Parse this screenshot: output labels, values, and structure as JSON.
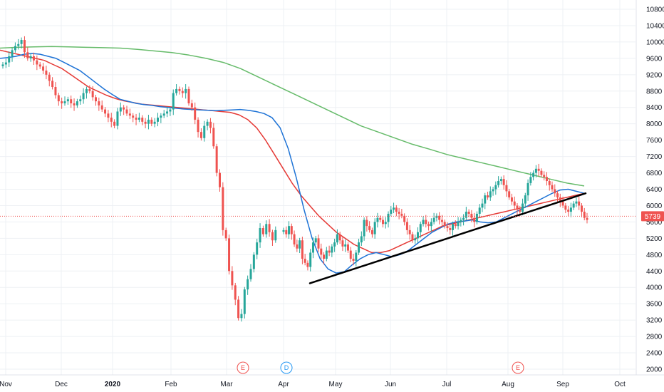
{
  "chart_data": {
    "type": "candlestick",
    "y_axis": {
      "ylim": [
        1900,
        11000
      ],
      "ticks": [
        2000,
        2400,
        2800,
        3200,
        3600,
        4000,
        4400,
        4800,
        5200,
        5600,
        6000,
        6400,
        6800,
        7200,
        7600,
        8000,
        8400,
        8800,
        9200,
        9600,
        10000,
        10400,
        10800
      ],
      "position": "right"
    },
    "x_axis": {
      "ticks": [
        "Nov",
        "Dec",
        "2020",
        "Feb",
        "Mar",
        "Apr",
        "May",
        "Jun",
        "Jul",
        "Aug",
        "Sep",
        "Oct"
      ],
      "range": [
        "Nov",
        "mid-Oct"
      ]
    },
    "last_price": {
      "value": "5739",
      "color": "#ef5350"
    },
    "colors": {
      "up": "#26a69a",
      "down": "#ef5350",
      "ma_fast": "#1e73d6",
      "ma_mid": "#e53935",
      "ma_slow": "#66bb6a",
      "trendline": "#000000"
    },
    "grid": true,
    "candles": {
      "x_start": 0,
      "x_end": 88,
      "closes": [
        9450,
        9500,
        9650,
        9800,
        9900,
        9950,
        10050,
        9750,
        9600,
        9650,
        9550,
        9450,
        9400,
        9300,
        9200,
        9050,
        8900,
        8700,
        8550,
        8500,
        8550,
        8600,
        8500,
        8450,
        8550,
        8600,
        8750,
        8850,
        8800,
        8650,
        8550,
        8450,
        8350,
        8250,
        8150,
        8050,
        7950,
        8300,
        8400,
        8350,
        8250,
        8200,
        8150,
        8100,
        8150,
        8050,
        8000,
        8100,
        8000,
        8050,
        8150,
        8200,
        8250,
        8300,
        8350,
        8750,
        8850,
        8800,
        8750,
        8850,
        8500,
        8400,
        8100,
        7800,
        7650,
        7950,
        8050,
        7900,
        7450,
        6800,
        6450,
        5400,
        5200,
        4400,
        4050,
        3700,
        3250,
        3350,
        3950,
        4200,
        4450,
        4800,
        5100,
        5450,
        5300,
        5550,
        5350,
        5150,
        5400
      ]
    },
    "extra_candles": [
      {
        "x": 47,
        "closes": [
          5400,
          5300,
          5500,
          5300,
          5050,
          4950,
          5150,
          4700,
          4600,
          4500,
          4850,
          5100,
          5200,
          4950,
          4800,
          4700,
          4900,
          4850,
          5000,
          5100,
          5300,
          5150,
          5000,
          5050,
          4900,
          4700,
          4650,
          4850,
          5100,
          5250,
          5650,
          5500,
          5400,
          5300,
          5600,
          5700,
          5650,
          5550,
          5600,
          5800,
          5900,
          5950,
          5850,
          5800,
          5750,
          5600,
          5400,
          5300,
          5150,
          5200,
          5350,
          5550,
          5650,
          5550,
          5500,
          5600,
          5700,
          5750,
          5650,
          5600,
          5500,
          5450,
          5400,
          5550,
          5500,
          5600,
          5650,
          5700,
          5850,
          5800,
          5700,
          5600,
          5800,
          5950,
          6050,
          6250,
          6200,
          6350,
          6400,
          6500,
          6600,
          6650,
          6500,
          6350,
          6200,
          6100,
          6000,
          5900,
          5850,
          6050,
          6250,
          6550,
          6700,
          6800,
          6900,
          6850,
          6750,
          6700,
          6600,
          6500,
          6400,
          6300,
          6200,
          6100,
          6000,
          5900,
          5850,
          5950,
          6050,
          6100,
          6000,
          5850,
          5700,
          5650
        ]
      }
    ],
    "moving_averages": [
      {
        "period_hint": "fast",
        "values": [
          9600,
          9620,
          9650,
          9700,
          9720,
          9700,
          9650,
          9600,
          9500,
          9400,
          9300,
          9150,
          9000,
          8850,
          8720,
          8600,
          8550,
          8500,
          8470,
          8450,
          8420,
          8400,
          8380,
          8360,
          8350,
          8340,
          8330,
          8320,
          8330,
          8340,
          8350,
          8330,
          8300,
          8250,
          8150,
          7900,
          7400,
          6700,
          5900,
          5200,
          4700,
          4450,
          4350,
          4380,
          4550,
          4700,
          4800,
          4850,
          4800,
          4750,
          4800,
          4900,
          5050,
          5200,
          5350,
          5450,
          5550,
          5600,
          5620,
          5650,
          5600,
          5580,
          5600,
          5700,
          5800,
          5900,
          6000,
          6100,
          6200,
          6300,
          6380,
          6400,
          6350,
          6300
        ]
      },
      {
        "period_hint": "mid",
        "values": [
          9800,
          9750,
          9700,
          9650,
          9600,
          9550,
          9450,
          9350,
          9200,
          9050,
          8900,
          8800,
          8700,
          8620,
          8560,
          8520,
          8480,
          8460,
          8440,
          8420,
          8400,
          8380,
          8360,
          8340,
          8320,
          8300,
          8280,
          8220,
          8100,
          7900,
          7600,
          7250,
          6900,
          6550,
          6250,
          6000,
          5750,
          5550,
          5350,
          5200,
          5050,
          4950,
          4850,
          4850,
          4900,
          5000,
          5100,
          5200,
          5300,
          5400,
          5500,
          5550,
          5600,
          5650,
          5700,
          5750,
          5800,
          5850,
          5900,
          5950,
          6000,
          6050,
          6100,
          6150,
          6200,
          6250,
          6300
        ]
      },
      {
        "period_hint": "slow",
        "values": [
          9850,
          9870,
          9880,
          9890,
          9880,
          9870,
          9860,
          9850,
          9820,
          9780,
          9740,
          9680,
          9600,
          9500,
          9350,
          9150,
          8950,
          8750,
          8550,
          8350,
          8150,
          7950,
          7800,
          7650,
          7500,
          7380,
          7250,
          7150,
          7050,
          6950,
          6850,
          6750,
          6650,
          6550,
          6480
        ]
      }
    ],
    "trendline": {
      "from": {
        "index": "Apr-mid",
        "price": 4100
      },
      "to": {
        "index": "Sep-mid",
        "price": 6300
      }
    },
    "price_line": 5739,
    "events": [
      {
        "label": "E",
        "near": "Mar",
        "color": "#ef5350"
      },
      {
        "label": "D",
        "near": "Apr",
        "color": "#2196f3"
      },
      {
        "label": "E",
        "near": "Aug",
        "color": "#ef5350"
      }
    ]
  }
}
